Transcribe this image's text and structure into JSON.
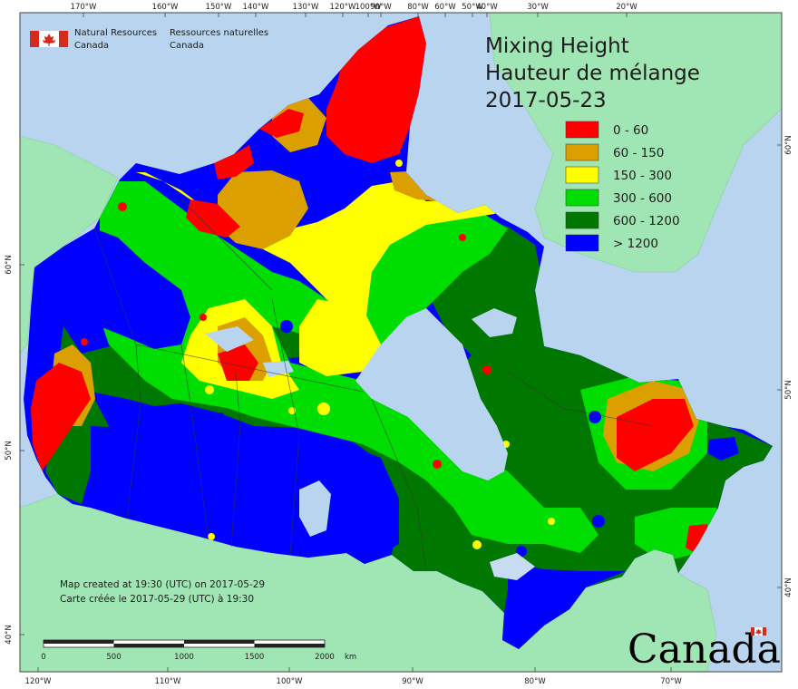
{
  "agency": {
    "english": [
      "Natural Resources",
      "Canada"
    ],
    "french": [
      "Ressources naturelles",
      "Canada"
    ]
  },
  "title": {
    "line1": "Mixing Height",
    "line2": "Hauteur de mélange",
    "date": "2017-05-23"
  },
  "legend": [
    {
      "label": "0 - 60",
      "color": "#ff0000"
    },
    {
      "label": "60 - 150",
      "color": "#dba000"
    },
    {
      "label": "150 - 300",
      "color": "#ffff00"
    },
    {
      "label": "300 - 600",
      "color": "#00dd00"
    },
    {
      "label": "600 - 1200",
      "color": "#007800"
    },
    {
      "label": "> 1200",
      "color": "#0000ff"
    }
  ],
  "colors": {
    "ocean": "#b8d4ee",
    "foreign_land": "#9fe6b4",
    "lakes": "#c7dcf3"
  },
  "credits": {
    "line1": "Map created at 19:30 (UTC) on 2017-05-29",
    "line2": "Carte créée le 2017-05-29 (UTC) à 19:30"
  },
  "scale": {
    "labels": [
      "0",
      "500",
      "1000",
      "1500",
      "2000"
    ],
    "unit": "km"
  },
  "graticule": {
    "top": [
      "170°W",
      "160°W",
      "150°W",
      "140°W",
      "130°W",
      "120°W",
      "100°W",
      "90°W",
      "80°W",
      "60°W",
      "50°W",
      "40°W",
      "30°W",
      "20°W"
    ],
    "bottom": [
      "120°W",
      "110°W",
      "100°W",
      "90°W",
      "80°W",
      "70°W"
    ],
    "left": [
      "60°N",
      "50°N",
      "40°N"
    ],
    "right": [
      "60°N",
      "50°N",
      "40°N"
    ]
  },
  "wordmark": "Canada"
}
